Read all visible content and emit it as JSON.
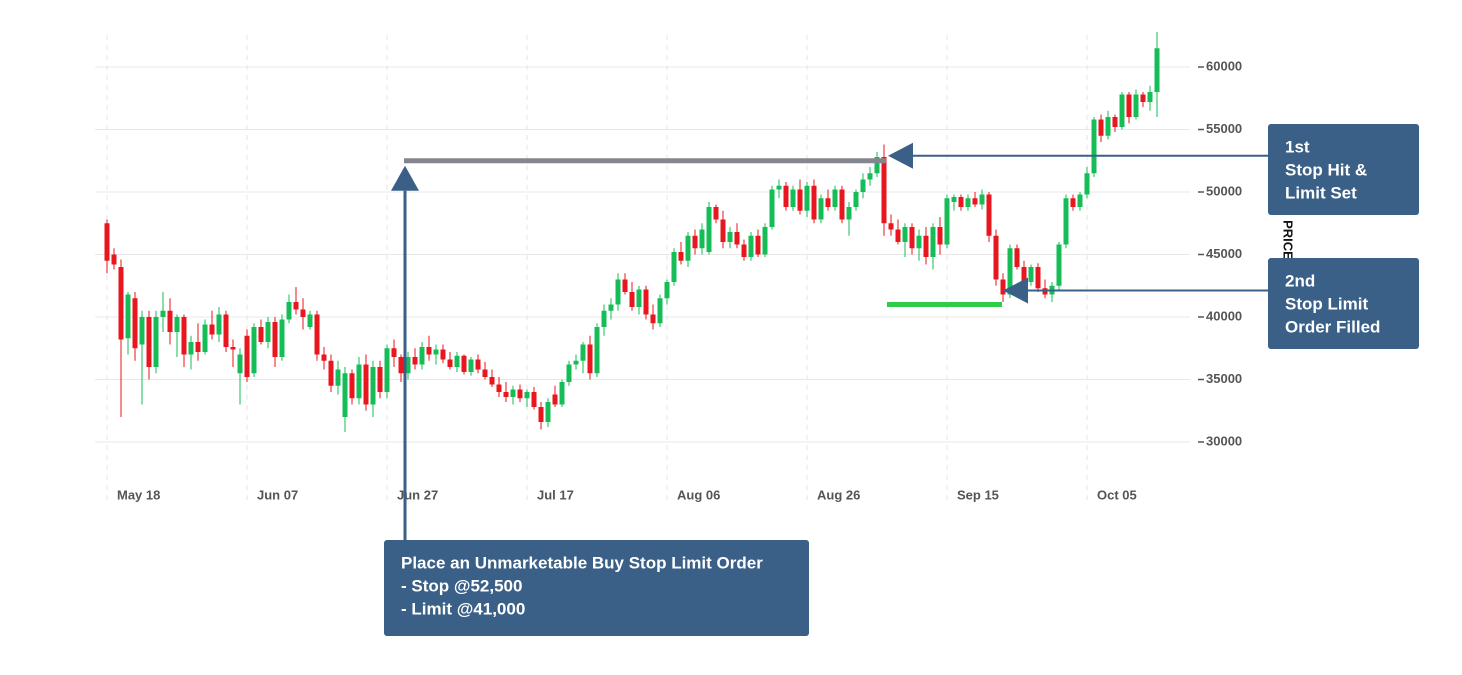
{
  "chart_data": {
    "type": "candlestick",
    "y_label": "PRICE",
    "up_color": "#16bd57",
    "down_color": "#e8161e",
    "grid": true,
    "ylim": [
      27000,
      63000
    ],
    "yticks": [
      30000,
      35000,
      40000,
      45000,
      50000,
      55000,
      60000
    ],
    "categories": [
      "May 18",
      null,
      null,
      null,
      null,
      null,
      null,
      null,
      null,
      null,
      null,
      null,
      null,
      null,
      null,
      null,
      null,
      null,
      null,
      null,
      "Jun 07",
      null,
      null,
      null,
      null,
      null,
      null,
      null,
      null,
      null,
      null,
      null,
      null,
      null,
      null,
      null,
      null,
      null,
      null,
      null,
      "Jun 27",
      null,
      null,
      null,
      null,
      null,
      null,
      null,
      null,
      null,
      null,
      null,
      null,
      null,
      null,
      null,
      null,
      null,
      null,
      null,
      "Jul 17",
      null,
      null,
      null,
      null,
      null,
      null,
      null,
      null,
      null,
      null,
      null,
      null,
      null,
      null,
      null,
      null,
      null,
      null,
      null,
      "Aug 06",
      null,
      null,
      null,
      null,
      null,
      null,
      null,
      null,
      null,
      null,
      null,
      null,
      null,
      null,
      null,
      null,
      null,
      null,
      null,
      "Aug 26",
      null,
      null,
      null,
      null,
      null,
      null,
      null,
      null,
      null,
      null,
      null,
      null,
      null,
      null,
      null,
      null,
      null,
      null,
      null,
      "Sep 15",
      null,
      null,
      null,
      null,
      null,
      null,
      null,
      null,
      null,
      null,
      null,
      null,
      null,
      null,
      null,
      null,
      null,
      null,
      null,
      "Oct 05",
      null,
      null,
      null,
      null,
      null,
      null,
      null,
      null,
      null,
      null
    ],
    "candles": [
      [
        47500,
        47800,
        43500,
        44500
      ],
      [
        45000,
        45500,
        43800,
        44200
      ],
      [
        44000,
        44600,
        32000,
        38200
      ],
      [
        38300,
        42000,
        37000,
        41800
      ],
      [
        41500,
        42000,
        36500,
        37500
      ],
      [
        37800,
        40500,
        33000,
        40000
      ],
      [
        40000,
        40500,
        35000,
        36000
      ],
      [
        36000,
        40500,
        35500,
        40000
      ],
      [
        40000,
        42000,
        38800,
        40500
      ],
      [
        40500,
        41500,
        37800,
        38800
      ],
      [
        38800,
        40200,
        36800,
        40000
      ],
      [
        40000,
        40200,
        36000,
        37000
      ],
      [
        37000,
        38500,
        35800,
        38000
      ],
      [
        38000,
        39500,
        36500,
        37200
      ],
      [
        37200,
        39800,
        37000,
        39400
      ],
      [
        39400,
        40500,
        38200,
        38600
      ],
      [
        38600,
        40800,
        38000,
        40200
      ],
      [
        40200,
        40500,
        37200,
        37600
      ],
      [
        37600,
        38200,
        36000,
        37400
      ],
      [
        35500,
        37500,
        33000,
        37000
      ],
      [
        38500,
        39000,
        34800,
        35200
      ],
      [
        35500,
        39500,
        35200,
        39200
      ],
      [
        39200,
        39800,
        37800,
        38000
      ],
      [
        38000,
        40000,
        37500,
        39600
      ],
      [
        39600,
        40000,
        36000,
        36800
      ],
      [
        36800,
        40200,
        36500,
        39800
      ],
      [
        39800,
        41800,
        39500,
        41200
      ],
      [
        41200,
        42400,
        40200,
        40600
      ],
      [
        40600,
        41500,
        39000,
        40000
      ],
      [
        39200,
        40500,
        39000,
        40200
      ],
      [
        40200,
        40500,
        36500,
        37000
      ],
      [
        37000,
        37600,
        35800,
        36500
      ],
      [
        36500,
        37000,
        34000,
        34500
      ],
      [
        34500,
        36500,
        33800,
        35800
      ],
      [
        32000,
        36000,
        30800,
        35500
      ],
      [
        35500,
        35800,
        33000,
        33500
      ],
      [
        33500,
        36800,
        33000,
        36200
      ],
      [
        36200,
        37000,
        32500,
        33000
      ],
      [
        33000,
        36500,
        32000,
        36000
      ],
      [
        36000,
        36500,
        33500,
        34000
      ],
      [
        34000,
        37800,
        33500,
        37500
      ],
      [
        37500,
        38200,
        36000,
        36800
      ],
      [
        36800,
        37000,
        34800,
        35500
      ],
      [
        35500,
        37200,
        35000,
        36800
      ],
      [
        36800,
        37500,
        35800,
        36200
      ],
      [
        36200,
        38000,
        35800,
        37600
      ],
      [
        37600,
        38500,
        36500,
        37000
      ],
      [
        37000,
        37800,
        36200,
        37400
      ],
      [
        37400,
        37800,
        36300,
        36600
      ],
      [
        36600,
        37200,
        35800,
        36000
      ],
      [
        36000,
        37200,
        35600,
        36900
      ],
      [
        36900,
        37000,
        35400,
        35600
      ],
      [
        35600,
        36800,
        35300,
        36600
      ],
      [
        36600,
        37000,
        35500,
        35800
      ],
      [
        35800,
        36400,
        35000,
        35200
      ],
      [
        35200,
        35800,
        34400,
        34600
      ],
      [
        34600,
        35200,
        33600,
        34000
      ],
      [
        34000,
        34800,
        33200,
        33600
      ],
      [
        33600,
        34500,
        33000,
        34200
      ],
      [
        34200,
        34600,
        33200,
        33500
      ],
      [
        33500,
        34200,
        32800,
        34000
      ],
      [
        34000,
        34400,
        32600,
        32800
      ],
      [
        32800,
        33200,
        31000,
        31600
      ],
      [
        31600,
        33500,
        31200,
        33200
      ],
      [
        33800,
        34500,
        32800,
        33000
      ],
      [
        33000,
        35000,
        32800,
        34800
      ],
      [
        34800,
        36500,
        34500,
        36200
      ],
      [
        36200,
        37000,
        35800,
        36500
      ],
      [
        36500,
        38000,
        35500,
        37800
      ],
      [
        37800,
        38500,
        35000,
        35500
      ],
      [
        35500,
        39500,
        35200,
        39200
      ],
      [
        39200,
        41000,
        38500,
        40500
      ],
      [
        40500,
        41500,
        39800,
        41000
      ],
      [
        41000,
        43500,
        40500,
        43000
      ],
      [
        43000,
        43500,
        41800,
        42000
      ],
      [
        42000,
        42800,
        40500,
        40800
      ],
      [
        40800,
        42500,
        40200,
        42200
      ],
      [
        42200,
        42500,
        39800,
        40200
      ],
      [
        40200,
        41000,
        39000,
        39500
      ],
      [
        39500,
        41800,
        39200,
        41500
      ],
      [
        41500,
        43000,
        41000,
        42800
      ],
      [
        42800,
        45500,
        42500,
        45200
      ],
      [
        45200,
        46000,
        44200,
        44500
      ],
      [
        44500,
        46800,
        44000,
        46500
      ],
      [
        46500,
        47000,
        45000,
        45500
      ],
      [
        45500,
        47500,
        45000,
        47000
      ],
      [
        45200,
        49200,
        45000,
        48800
      ],
      [
        48800,
        49000,
        47500,
        47800
      ],
      [
        47800,
        48500,
        45500,
        46000
      ],
      [
        46000,
        47200,
        45500,
        46800
      ],
      [
        46800,
        47500,
        45500,
        45800
      ],
      [
        45800,
        46200,
        44500,
        44800
      ],
      [
        44800,
        46800,
        44500,
        46500
      ],
      [
        46500,
        47000,
        44800,
        45000
      ],
      [
        45000,
        47500,
        44800,
        47200
      ],
      [
        47200,
        50500,
        47000,
        50200
      ],
      [
        50200,
        51000,
        49500,
        50500
      ],
      [
        50500,
        50800,
        48500,
        48800
      ],
      [
        48800,
        50500,
        48500,
        50200
      ],
      [
        50200,
        51000,
        48200,
        48500
      ],
      [
        48500,
        50800,
        48000,
        50500
      ],
      [
        50500,
        51000,
        47500,
        47800
      ],
      [
        47800,
        49800,
        47500,
        49500
      ],
      [
        49500,
        50200,
        48500,
        48800
      ],
      [
        48800,
        50500,
        48500,
        50200
      ],
      [
        50200,
        50500,
        47500,
        47800
      ],
      [
        47800,
        49200,
        46500,
        48800
      ],
      [
        48800,
        50200,
        48500,
        50000
      ],
      [
        50000,
        51500,
        49500,
        51000
      ],
      [
        51000,
        52000,
        50500,
        51500
      ],
      [
        51500,
        53200,
        51200,
        52800
      ],
      [
        52800,
        53800,
        46500,
        47500
      ],
      [
        47500,
        48200,
        46500,
        47000
      ],
      [
        47000,
        47800,
        45800,
        46000
      ],
      [
        46000,
        47500,
        44800,
        47200
      ],
      [
        47200,
        47500,
        45000,
        45500
      ],
      [
        45500,
        47000,
        44500,
        46500
      ],
      [
        46500,
        47200,
        44200,
        44800
      ],
      [
        44800,
        47500,
        43800,
        47200
      ],
      [
        47200,
        48000,
        45000,
        45800
      ],
      [
        45800,
        49800,
        45500,
        49500
      ],
      [
        49200,
        49800,
        48500,
        49600
      ],
      [
        49600,
        49800,
        48500,
        48800
      ],
      [
        48800,
        49800,
        48500,
        49500
      ],
      [
        49500,
        50000,
        48800,
        49000
      ],
      [
        49000,
        50200,
        48600,
        49800
      ],
      [
        49800,
        50000,
        46000,
        46500
      ],
      [
        46500,
        47000,
        42500,
        43000
      ],
      [
        43000,
        43500,
        41200,
        41800
      ],
      [
        41800,
        45800,
        41500,
        45500
      ],
      [
        45500,
        45800,
        43800,
        44000
      ],
      [
        44000,
        44500,
        42500,
        42800
      ],
      [
        42800,
        44200,
        42500,
        44000
      ],
      [
        44000,
        44300,
        42000,
        42300
      ],
      [
        42300,
        43000,
        41500,
        41800
      ],
      [
        41800,
        42800,
        41200,
        42500
      ],
      [
        42500,
        46000,
        42200,
        45800
      ],
      [
        45800,
        49800,
        45500,
        49500
      ],
      [
        49500,
        49800,
        48500,
        48800
      ],
      [
        48800,
        50000,
        48500,
        49800
      ],
      [
        49800,
        52000,
        49500,
        51500
      ],
      [
        51500,
        56000,
        51200,
        55800
      ],
      [
        55800,
        56200,
        54000,
        54500
      ],
      [
        54500,
        56500,
        54200,
        56000
      ],
      [
        56000,
        56200,
        54800,
        55200
      ],
      [
        55200,
        58000,
        55000,
        57800
      ],
      [
        57800,
        58000,
        55500,
        56000
      ],
      [
        56000,
        58200,
        55800,
        57800
      ],
      [
        57800,
        58000,
        56800,
        57200
      ],
      [
        57200,
        58500,
        56500,
        58000
      ],
      [
        58000,
        62800,
        56000,
        61500
      ]
    ],
    "stop_line": {
      "value": 52500,
      "color": "#85858f"
    },
    "limit_line": {
      "value": 41000,
      "color": "#2fcc47"
    },
    "annotations": [
      {
        "text": [
          "Place an Unmarketable Buy Stop Limit Order",
          "- Stop @52,500",
          "- Limit @41,000"
        ]
      },
      {
        "text": [
          "1st",
          "Stop Hit &",
          "Limit Set"
        ]
      },
      {
        "text": [
          "2nd",
          "Stop Limit",
          "Order Filled"
        ]
      }
    ]
  }
}
